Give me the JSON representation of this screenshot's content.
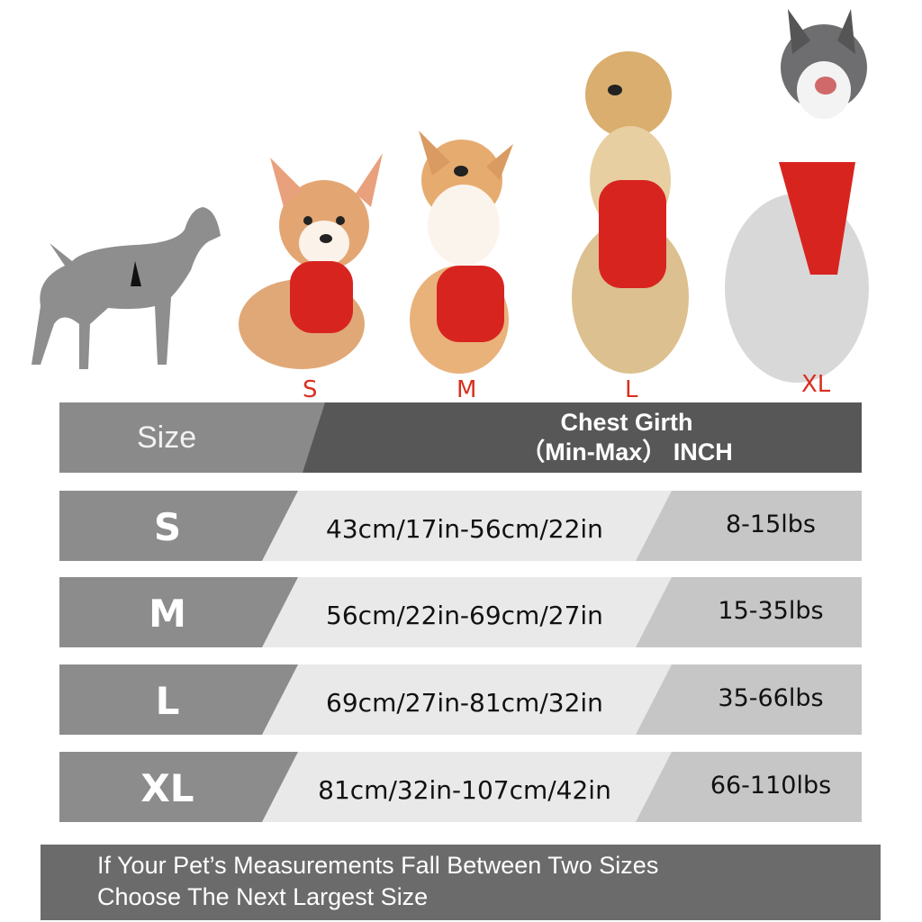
{
  "dogs": [
    {
      "size": "S",
      "label_color": "#d8301f"
    },
    {
      "size": "M",
      "label_color": "#d8301f"
    },
    {
      "size": "L",
      "label_color": "#d8301f"
    },
    {
      "size": "XL",
      "label_color": "#d8301f"
    }
  ],
  "table": {
    "header": {
      "size": "Size",
      "girth_line1": "Chest Girth",
      "girth_line2": "（Min-Max） INCH"
    },
    "rows": [
      {
        "size": "S",
        "girth": "43cm/17in-56cm/22in",
        "weight": "8-15lbs"
      },
      {
        "size": "M",
        "girth": "56cm/22in-69cm/27in",
        "weight": "15-35lbs"
      },
      {
        "size": "L",
        "girth": "69cm/27in-81cm/32in",
        "weight": "35-66lbs"
      },
      {
        "size": "XL",
        "girth": "81cm/32in-107cm/42in",
        "weight": "66-110lbs"
      }
    ]
  },
  "footer": {
    "line1": "If Your Pet’s Measurements Fall Between Two Sizes",
    "line2": "Choose The Next Largest Size"
  },
  "colors": {
    "harness": "#d8241f",
    "header_dark": "#575757",
    "row_light": "#e9e9e9"
  }
}
